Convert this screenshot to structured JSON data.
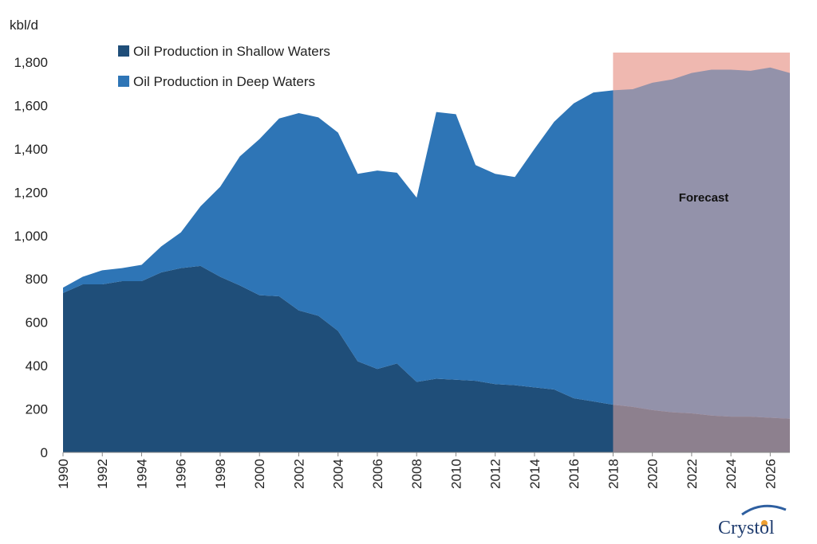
{
  "chart_data": {
    "type": "area",
    "stacked": true,
    "ylabel": "kbl/d",
    "ylim": [
      0,
      1800
    ],
    "yticks": [
      0,
      200,
      400,
      600,
      800,
      1000,
      1200,
      1400,
      1600,
      1800
    ],
    "ytick_labels": [
      "0",
      "200",
      "400",
      "600",
      "800",
      "1,000",
      "1,200",
      "1,400",
      "1,600",
      "1,800"
    ],
    "xlim": [
      1990,
      2027
    ],
    "xticks": [
      1990,
      1992,
      1994,
      1996,
      1998,
      2000,
      2002,
      2004,
      2006,
      2008,
      2010,
      2012,
      2014,
      2016,
      2018,
      2020,
      2022,
      2024,
      2026
    ],
    "x": [
      1990,
      1991,
      1992,
      1993,
      1994,
      1995,
      1996,
      1997,
      1998,
      1999,
      2000,
      2001,
      2002,
      2003,
      2004,
      2005,
      2006,
      2007,
      2008,
      2009,
      2010,
      2011,
      2012,
      2013,
      2014,
      2015,
      2016,
      2017,
      2018,
      2019,
      2020,
      2021,
      2022,
      2023,
      2024,
      2025,
      2026,
      2027
    ],
    "series": [
      {
        "name": "Oil Production in Shallow Waters",
        "color": "#1f4e79",
        "values": [
          735,
          775,
          775,
          790,
          790,
          830,
          850,
          860,
          810,
          770,
          725,
          720,
          655,
          630,
          560,
          420,
          385,
          410,
          325,
          340,
          335,
          330,
          315,
          310,
          300,
          290,
          250,
          235,
          220,
          210,
          195,
          185,
          180,
          170,
          165,
          165,
          160,
          155
        ]
      },
      {
        "name": "Oil Production in Deep Waters",
        "color": "#2e75b6",
        "values": [
          25,
          35,
          65,
          60,
          75,
          120,
          165,
          275,
          415,
          595,
          720,
          820,
          910,
          915,
          915,
          865,
          915,
          880,
          850,
          1230,
          1225,
          995,
          970,
          960,
          1100,
          1235,
          1360,
          1425,
          1450,
          1465,
          1510,
          1535,
          1570,
          1595,
          1600,
          1595,
          1615,
          1595
        ]
      }
    ],
    "forecast": {
      "label": "Forecast",
      "start": 2018,
      "end": 2027,
      "color": "#f8cbc3"
    },
    "legend_position": "top-left",
    "grid": false
  },
  "logo": {
    "text": "Crystol"
  }
}
